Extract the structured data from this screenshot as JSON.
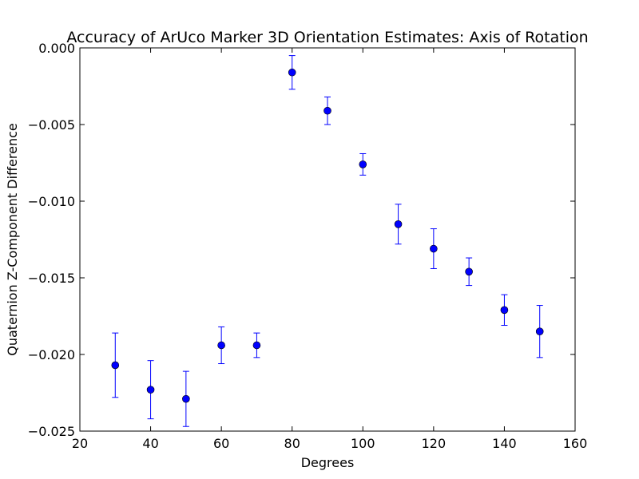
{
  "chart_data": {
    "type": "scatter",
    "title": "Accuracy of ArUco Marker 3D Orientation Estimates: Axis of Rotation",
    "xlabel": "Degrees",
    "ylabel": "Quaternion Z-Component Difference",
    "xlim": [
      20,
      160
    ],
    "ylim": [
      -0.025,
      0.0
    ],
    "x_ticks": [
      20,
      40,
      60,
      80,
      100,
      120,
      140,
      160
    ],
    "y_ticks": [
      0.0,
      -0.005,
      -0.01,
      -0.015,
      -0.02,
      -0.025
    ],
    "x_tick_labels": [
      "20",
      "40",
      "60",
      "80",
      "100",
      "120",
      "140",
      "160"
    ],
    "y_tick_labels": [
      "0.000",
      "−0.005",
      "−0.010",
      "−0.015",
      "−0.020",
      "−0.025"
    ],
    "grid": false,
    "series": [
      {
        "x": [
          30,
          40,
          50,
          60,
          70,
          80,
          90,
          100,
          110,
          120,
          130,
          140,
          150
        ],
        "y": [
          -0.0207,
          -0.0223,
          -0.0229,
          -0.0194,
          -0.0194,
          -0.0016,
          -0.0041,
          -0.0076,
          -0.0115,
          -0.0131,
          -0.0146,
          -0.0171,
          -0.0185
        ],
        "yerr": [
          0.0021,
          0.0019,
          0.0018,
          0.0012,
          0.0008,
          0.0011,
          0.0009,
          0.0007,
          0.0013,
          0.0013,
          0.0009,
          0.001,
          0.0017
        ],
        "color": "#0000ff",
        "errorbar_color": "#0000ff"
      }
    ]
  }
}
